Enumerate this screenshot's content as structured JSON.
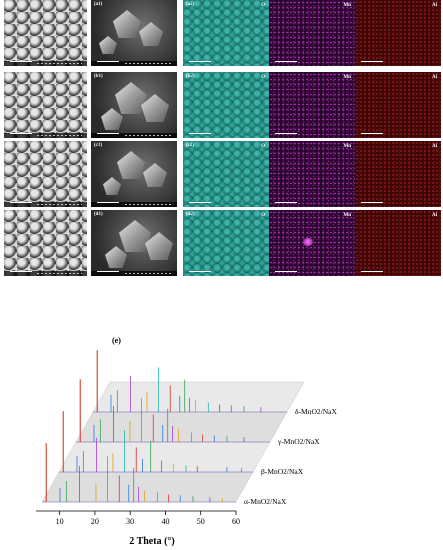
{
  "panels": {
    "rows": [
      {
        "sem_label": "(a)",
        "sem_hr_label": "(a1)",
        "map_label": "(a2)"
      },
      {
        "sem_label": "(b)",
        "sem_hr_label": "(b1)",
        "map_label": "(b2)"
      },
      {
        "sem_label": "(c)",
        "sem_hr_label": "(c1)",
        "map_label": "(c2)"
      },
      {
        "sem_label": "(d)",
        "sem_hr_label": "(d1)",
        "map_label": "(d2)"
      }
    ],
    "elements": [
      "O",
      "Mn",
      "Al"
    ],
    "colors": {
      "O": "#2fa394",
      "Mn": "#b43ab8",
      "Al": "#8c1818"
    }
  },
  "chart_data": {
    "type": "line",
    "panel_label": "(e)",
    "title": "",
    "xlabel": "2 Theta (°)",
    "ylabel": "",
    "xlim": [
      5,
      60
    ],
    "x_ticks": [
      10,
      20,
      30,
      40,
      50,
      60
    ],
    "grid": false,
    "style": "3D waterfall",
    "series": [
      {
        "name": "α-MnO2/NaX",
        "peaks": [
          [
            6.2,
            0.62
          ],
          [
            10.1,
            0.15
          ],
          [
            11.9,
            0.22
          ],
          [
            15.6,
            0.38
          ],
          [
            20.3,
            0.19
          ],
          [
            23.6,
            0.48
          ],
          [
            26.9,
            0.28
          ],
          [
            29.6,
            0.18
          ],
          [
            31.0,
            0.36
          ],
          [
            32.4,
            0.16
          ],
          [
            34.1,
            0.12
          ],
          [
            37.7,
            0.1
          ],
          [
            40.9,
            0.08
          ],
          [
            44.2,
            0.07
          ],
          [
            47.8,
            0.06
          ],
          [
            52.6,
            0.05
          ],
          [
            56.1,
            0.04
          ]
        ]
      },
      {
        "name": "β-MnO2/NaX",
        "peaks": [
          [
            6.2,
            0.64
          ],
          [
            10.1,
            0.17
          ],
          [
            11.9,
            0.22
          ],
          [
            15.6,
            0.36
          ],
          [
            20.3,
            0.2
          ],
          [
            23.6,
            0.44
          ],
          [
            26.9,
            0.26
          ],
          [
            28.7,
            0.14
          ],
          [
            31.0,
            0.33
          ],
          [
            34.1,
            0.12
          ],
          [
            37.4,
            0.09
          ],
          [
            41.0,
            0.07
          ],
          [
            44.2,
            0.06
          ],
          [
            52.6,
            0.05
          ],
          [
            56.7,
            0.04
          ]
        ]
      },
      {
        "name": "γ-MnO2/NaX",
        "peaks": [
          [
            6.2,
            0.66
          ],
          [
            10.1,
            0.18
          ],
          [
            11.9,
            0.24
          ],
          [
            15.6,
            0.38
          ],
          [
            20.3,
            0.22
          ],
          [
            23.6,
            0.46
          ],
          [
            26.9,
            0.29
          ],
          [
            29.6,
            0.18
          ],
          [
            31.0,
            0.35
          ],
          [
            32.4,
            0.17
          ],
          [
            34.1,
            0.14
          ],
          [
            37.7,
            0.1
          ],
          [
            40.9,
            0.08
          ],
          [
            44.2,
            0.07
          ],
          [
            47.8,
            0.06
          ],
          [
            52.6,
            0.05
          ]
        ]
      },
      {
        "name": "δ-MnO2/NaX",
        "peaks": [
          [
            6.2,
            0.65
          ],
          [
            10.1,
            0.18
          ],
          [
            11.9,
            0.23
          ],
          [
            15.6,
            0.38
          ],
          [
            20.3,
            0.21
          ],
          [
            23.6,
            0.47
          ],
          [
            26.9,
            0.28
          ],
          [
            29.6,
            0.17
          ],
          [
            31.0,
            0.34
          ],
          [
            32.4,
            0.15
          ],
          [
            34.1,
            0.13
          ],
          [
            37.7,
            0.1
          ],
          [
            40.9,
            0.08
          ],
          [
            44.2,
            0.07
          ],
          [
            47.8,
            0.06
          ],
          [
            52.6,
            0.05
          ]
        ]
      }
    ]
  }
}
